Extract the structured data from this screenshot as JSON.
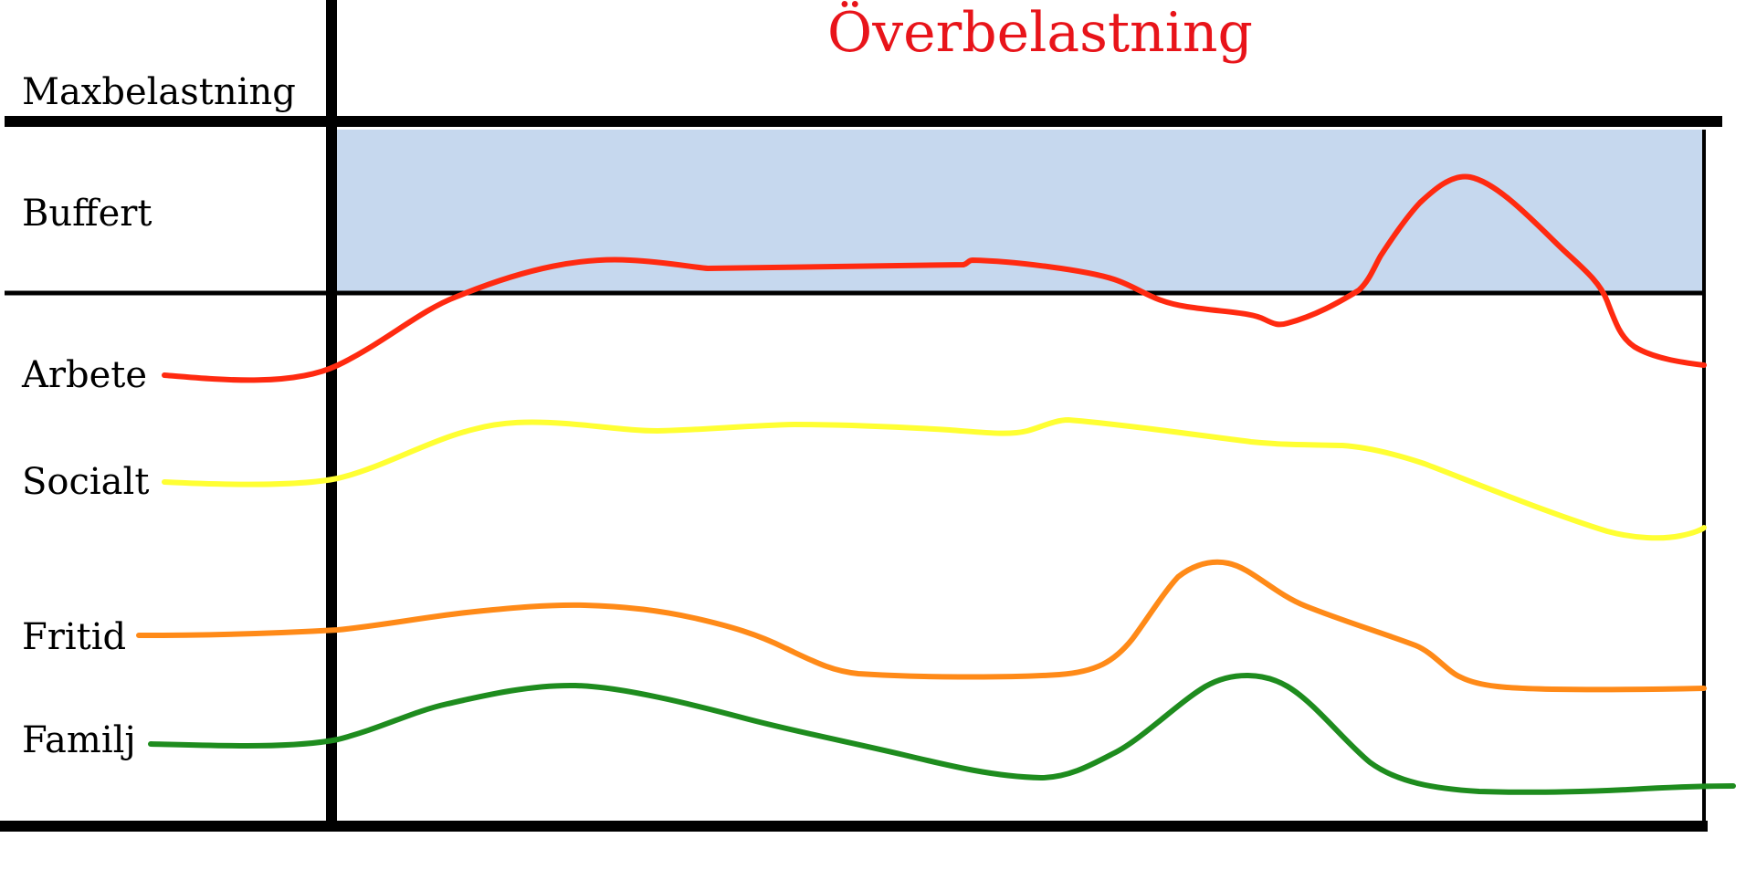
{
  "title": {
    "text": "Överbelastning",
    "color": "#e8141a"
  },
  "labels": {
    "max": "Maxbelastning",
    "buffer": "Buffert",
    "work": "Arbete",
    "social": "Socialt",
    "leisure": "Fritid",
    "family": "Familj"
  },
  "colors": {
    "buffer_fill": "#c6d8ee",
    "axis": "#000000",
    "work": "#ff2a10",
    "social": "#ffff33",
    "leisure": "#ff8a18",
    "family": "#1e8c1e"
  }
}
